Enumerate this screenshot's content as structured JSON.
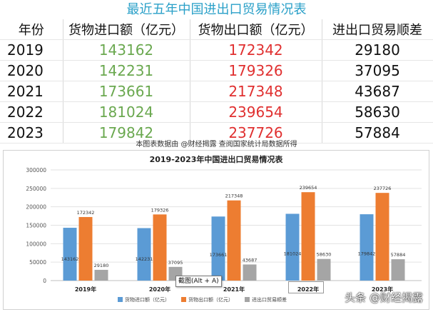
{
  "table": {
    "title": "最近五年中国进出口贸易情况表",
    "headers": [
      "年份",
      "货物进口额（亿元）",
      "货物出口额（亿元）",
      "进出口贸易顺差"
    ],
    "rows": [
      {
        "year": "2019",
        "import": "143162",
        "export": "172342",
        "balance": "29180"
      },
      {
        "year": "2020",
        "import": "142231",
        "export": "179326",
        "balance": "37095"
      },
      {
        "year": "2021",
        "import": "173661",
        "export": "217348",
        "balance": "43687"
      },
      {
        "year": "2022",
        "import": "181024",
        "export": "239654",
        "balance": "58630"
      },
      {
        "year": "2023",
        "import": "179842",
        "export": "237726",
        "balance": "57884"
      }
    ]
  },
  "caption": "本图表数据由 @财经揭露 查阅国家统计局数据所得",
  "tooltip": "截图(Alt + A)",
  "watermark": "头条 @财经揭露",
  "chart_data": {
    "type": "bar",
    "title": "2019-2023年中国进出口贸易情况表",
    "categories": [
      "2019年",
      "2020年",
      "2021年",
      "2022年",
      "2023年"
    ],
    "series": [
      {
        "name": "货物进口额（亿元）",
        "values": [
          143162,
          142231,
          173661,
          181024,
          179842
        ],
        "color": "#5b9bd5"
      },
      {
        "name": "货物出口额（亿元）",
        "values": [
          172342,
          179326,
          217348,
          239654,
          237726
        ],
        "color": "#ed7d31"
      },
      {
        "name": "进出口贸易顺差",
        "values": [
          29180,
          37095,
          43687,
          58630,
          57884
        ],
        "color": "#a5a5a5"
      }
    ],
    "ylim": [
      0,
      300000
    ],
    "yticks": [
      "0",
      "50000",
      "100000",
      "150000",
      "200000",
      "250000",
      "300000"
    ],
    "grid": true,
    "legend": "bottom"
  }
}
